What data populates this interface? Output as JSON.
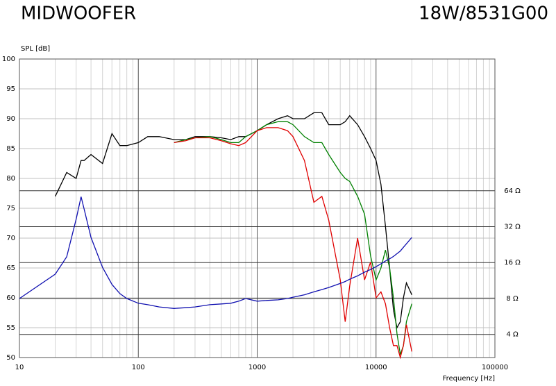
{
  "chart_data": {
    "type": "line",
    "title": "MIDWOOFER",
    "subtitle": "18W/8531G00",
    "y_label": "SPL [dB]",
    "x_label": "Frequency [Hz]",
    "x_log": true,
    "y2_log": true,
    "grid": true,
    "minor_grid": true,
    "x": [
      10,
      20,
      25,
      30,
      33,
      35,
      40,
      50,
      60,
      70,
      80,
      100,
      120,
      150,
      200,
      250,
      300,
      400,
      500,
      600,
      700,
      800,
      1000,
      1200,
      1500,
      1800,
      2000,
      2500,
      3000,
      3500,
      4000,
      5000,
      5500,
      6000,
      7000,
      8000,
      9000,
      10000,
      11000,
      12000,
      13000,
      14000,
      15000,
      16000,
      17000,
      18000,
      20000
    ],
    "xlim": [
      10,
      100000
    ],
    "xticks": [
      10,
      100,
      1000,
      10000,
      100000
    ],
    "ylim": [
      50,
      100
    ],
    "yticks": [
      50,
      55,
      60,
      65,
      70,
      75,
      80,
      85,
      90,
      95,
      100
    ],
    "y2lim": [
      2.56,
      814
    ],
    "y2ticks": [
      {
        "value": 4,
        "label": "4 Ω"
      },
      {
        "value": 8,
        "label": "8 Ω"
      },
      {
        "value": 16,
        "label": "16 Ω"
      },
      {
        "value": 32,
        "label": "32 Ω"
      },
      {
        "value": 64,
        "label": "64 Ω"
      }
    ],
    "series": [
      {
        "color": "#000000",
        "values": [
          null,
          77,
          81,
          80,
          83,
          83,
          84,
          82.5,
          87.5,
          85.5,
          85.5,
          86,
          87,
          87,
          86.5,
          86.5,
          87,
          87,
          86.8,
          86.5,
          87,
          87,
          88,
          89,
          90,
          90.5,
          90,
          90,
          91,
          91,
          89,
          89,
          89.5,
          90.5,
          89,
          87,
          85,
          83,
          79,
          72,
          65,
          58,
          55,
          56,
          60,
          62.5,
          60.5
        ]
      },
      {
        "color": "#008000",
        "values": [
          null,
          null,
          null,
          null,
          null,
          null,
          null,
          null,
          null,
          null,
          null,
          null,
          null,
          null,
          86,
          86.5,
          86.8,
          87,
          86.5,
          86,
          86,
          87,
          88,
          89,
          89.5,
          89.5,
          89,
          87,
          86,
          86,
          84,
          81,
          80,
          79.5,
          77,
          74,
          67,
          63,
          65,
          68,
          65,
          60,
          54,
          50.5,
          52,
          56,
          59
        ]
      },
      {
        "color": "#e00000",
        "values": [
          null,
          null,
          null,
          null,
          null,
          null,
          null,
          null,
          null,
          null,
          null,
          null,
          null,
          null,
          86,
          86.3,
          86.8,
          86.8,
          86.3,
          85.8,
          85.5,
          86,
          88,
          88.5,
          88.5,
          88,
          87,
          83,
          76,
          77,
          73,
          63,
          56,
          62,
          70,
          63,
          66,
          60,
          61,
          59,
          55,
          52,
          52,
          50,
          52,
          55.5,
          51
        ]
      },
      {
        "color": "#1010b0",
        "axis": "y2",
        "values": [
          8,
          12.8,
          17.9,
          37,
          57,
          45,
          26,
          14.6,
          10.5,
          8.8,
          8,
          7.3,
          7.1,
          6.8,
          6.6,
          6.7,
          6.8,
          7.1,
          7.2,
          7.3,
          7.6,
          8.0,
          7.6,
          7.7,
          7.8,
          8.0,
          8.2,
          8.6,
          9.1,
          9.5,
          9.9,
          10.7,
          11.1,
          11.6,
          12.4,
          13.3,
          14,
          14.8,
          15.6,
          16.5,
          17.2,
          18,
          19,
          20,
          21.5,
          23,
          26
        ]
      }
    ]
  }
}
